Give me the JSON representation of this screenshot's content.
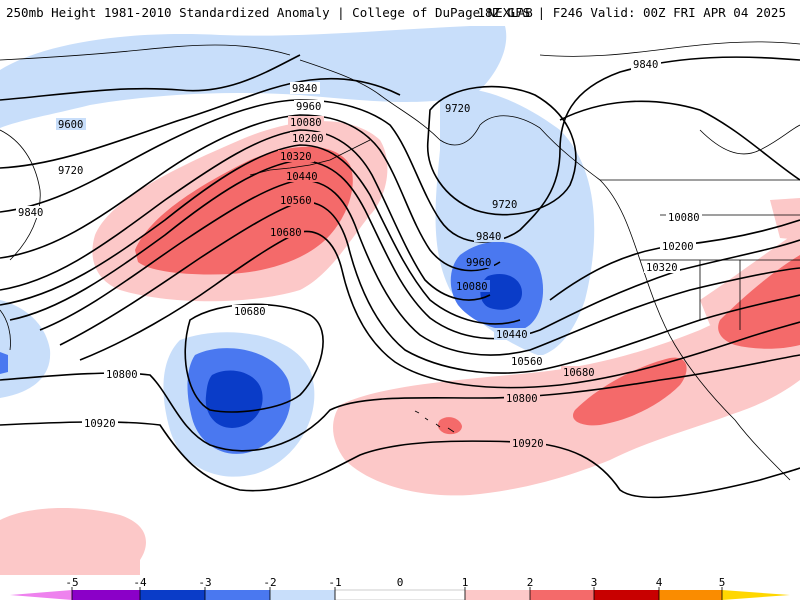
{
  "header": {
    "left": "250mb Height 1981-2010 Standardized Anomaly | College of DuPage NEXLAB",
    "right": "18Z GFS | F246 Valid: 00Z FRI APR 04 2025"
  },
  "map": {
    "contour_labels": [
      "9600",
      "9720",
      "9840",
      "9960",
      "10080",
      "10200",
      "10320",
      "10440",
      "10560",
      "10680",
      "10800",
      "10920"
    ],
    "anomaly_colors": {
      "minus5": "#ee82ee",
      "minus4": "#8b00c8",
      "minus3": "#0a3cc8",
      "minus2": "#4a78f0",
      "minus1": "#c8defa",
      "zero": "#ffffff",
      "plus1": "#fcc8c8",
      "plus2": "#f46a6a",
      "plus3": "#c80000",
      "plus4": "#fa8c00",
      "plus5": "#ffd700"
    }
  },
  "colorbar": {
    "ticks": [
      "-5",
      "-4",
      "-3",
      "-2",
      "-1",
      "0",
      "1",
      "2",
      "3",
      "4",
      "5"
    ]
  }
}
